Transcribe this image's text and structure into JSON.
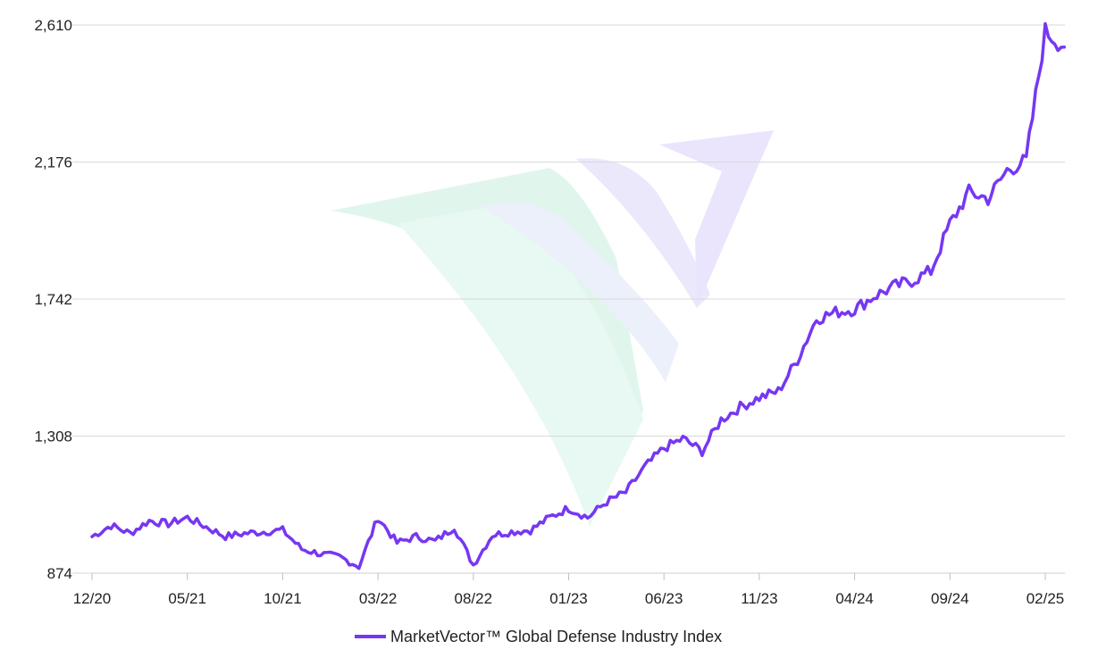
{
  "colors": {
    "series": "#7637f2",
    "grid": "#d9d9d9",
    "watermark_green": "#c8f0e0",
    "watermark_purple": "#d9d0fb"
  },
  "watermark": {
    "icon": "marketvector-logo-icon"
  },
  "chart_data": {
    "type": "line",
    "title": "",
    "xlabel": "",
    "ylabel": "",
    "ylim": [
      874,
      2610
    ],
    "yticks": [
      874,
      1308,
      1742,
      2176,
      2610
    ],
    "ytick_labels": [
      "874",
      "1,308",
      "1,742",
      "2,176",
      "2,610"
    ],
    "xticks": [
      "12/20",
      "05/21",
      "10/21",
      "03/22",
      "08/22",
      "01/23",
      "06/23",
      "11/23",
      "04/24",
      "09/24",
      "02/25"
    ],
    "grid": "horizontal",
    "legend_position": "bottom-center",
    "series": [
      {
        "name": "MarketVector™ Global Defense Industry Index",
        "x": [
          "12/20",
          "01/21",
          "02/21",
          "03/21",
          "04/21",
          "05/21",
          "06/21",
          "07/21",
          "08/21",
          "09/21",
          "10/21",
          "11/21",
          "12/21",
          "01/22",
          "02/22",
          "03/22",
          "04/22",
          "05/22",
          "06/22",
          "07/22",
          "08/22",
          "09/22",
          "10/22",
          "11/22",
          "12/22",
          "01/23",
          "02/23",
          "03/23",
          "04/23",
          "05/23",
          "06/23",
          "07/23",
          "08/23",
          "09/23",
          "10/23",
          "11/23",
          "12/23",
          "01/24",
          "02/24",
          "03/24",
          "04/24",
          "05/24",
          "06/24",
          "07/24",
          "08/24",
          "09/24",
          "10/24",
          "11/24",
          "12/24",
          "01/25",
          "02/25",
          "03/25"
        ],
        "values": [
          990,
          1025,
          1000,
          1040,
          1030,
          1050,
          1020,
          990,
          1000,
          1005,
          1010,
          950,
          935,
          925,
          895,
          1050,
          970,
          990,
          975,
          1020,
          900,
          995,
          1005,
          1010,
          1050,
          1080,
          1050,
          1100,
          1130,
          1210,
          1270,
          1300,
          1260,
          1360,
          1400,
          1430,
          1450,
          1550,
          1680,
          1700,
          1710,
          1750,
          1780,
          1800,
          1830,
          1980,
          2080,
          2060,
          2150,
          2180,
          2590,
          2540
        ]
      }
    ]
  }
}
